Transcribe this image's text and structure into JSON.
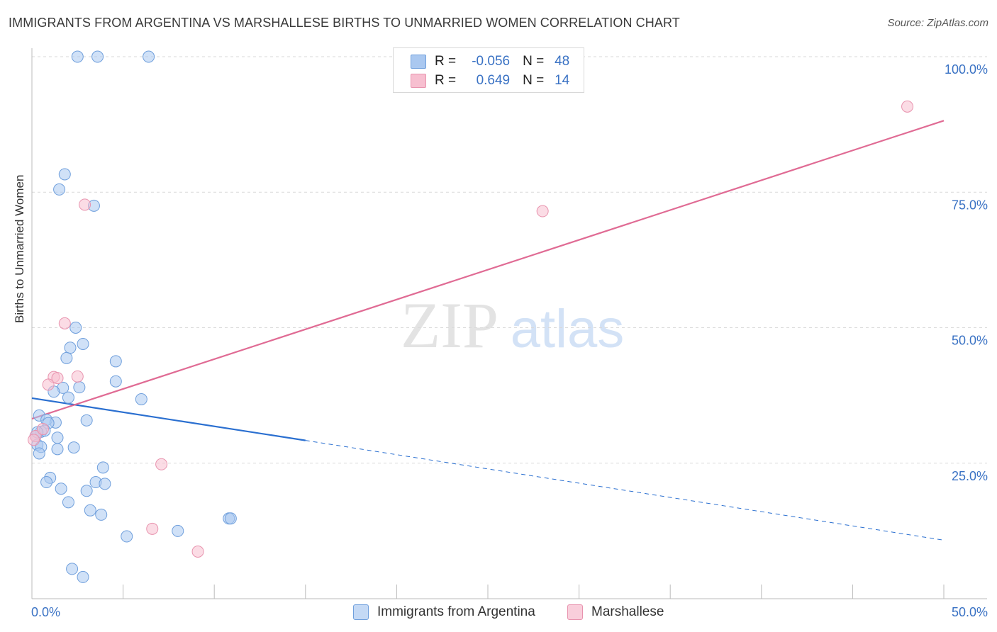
{
  "header": {
    "title": "IMMIGRANTS FROM ARGENTINA VS MARSHALLESE BIRTHS TO UNMARRIED WOMEN CORRELATION CHART",
    "source": "Source: ZipAtlas.com"
  },
  "watermark": {
    "zip": "ZIP",
    "atlas": "atlas"
  },
  "legend": {
    "rows": [
      {
        "r_label": "R =",
        "r_value": "-0.056",
        "n_label": "N =",
        "n_value": "48"
      },
      {
        "r_label": "R =",
        "r_value": "0.649",
        "n_label": "N =",
        "n_value": "14"
      }
    ]
  },
  "bottom_legend": {
    "series1": "Immigrants from Argentina",
    "series2": "Marshallese"
  },
  "colors": {
    "blue_fill": "#aac8f0",
    "blue_stroke": "#6f9fdc",
    "blue_line": "#2a6fd0",
    "pink_fill": "#f7bfd0",
    "pink_stroke": "#e893ae",
    "pink_line": "#e06b94",
    "axis_text": "#3a72c4",
    "grid": "#d9d9d9"
  },
  "chart_data": {
    "type": "scatter",
    "title": "IMMIGRANTS FROM ARGENTINA VS MARSHALLESE BIRTHS TO UNMARRIED WOMEN CORRELATION CHART",
    "xlabel": "",
    "ylabel": "Births to Unmarried Women",
    "xlim": [
      0,
      50
    ],
    "ylim": [
      0,
      100
    ],
    "x_tick_labels": [
      "0.0%",
      "50.0%"
    ],
    "y_ticks": [
      25,
      50,
      75,
      100
    ],
    "y_tick_labels": [
      "25.0%",
      "50.0%",
      "75.0%",
      "100.0%"
    ],
    "grid": true,
    "series": [
      {
        "name": "Immigrants from Argentina",
        "r": -0.056,
        "n": 48,
        "points": [
          [
            2.5,
            100
          ],
          [
            3.6,
            100
          ],
          [
            6.4,
            100
          ],
          [
            1.8,
            78.3
          ],
          [
            1.5,
            75.5
          ],
          [
            3.4,
            72.5
          ],
          [
            2.4,
            50.0
          ],
          [
            2.8,
            47.0
          ],
          [
            2.1,
            46.3
          ],
          [
            1.9,
            44.4
          ],
          [
            4.6,
            43.8
          ],
          [
            4.6,
            40.1
          ],
          [
            2.6,
            39.0
          ],
          [
            1.7,
            38.9
          ],
          [
            1.2,
            38.2
          ],
          [
            2.0,
            37.1
          ],
          [
            6.0,
            36.8
          ],
          [
            0.4,
            33.8
          ],
          [
            0.8,
            33.0
          ],
          [
            1.3,
            32.5
          ],
          [
            3.0,
            32.9
          ],
          [
            0.9,
            32.4
          ],
          [
            0.5,
            30.8
          ],
          [
            0.7,
            31.0
          ],
          [
            1.4,
            29.7
          ],
          [
            0.2,
            30.0
          ],
          [
            0.3,
            28.4
          ],
          [
            0.5,
            28.0
          ],
          [
            1.4,
            27.6
          ],
          [
            2.3,
            27.9
          ],
          [
            0.4,
            26.8
          ],
          [
            3.9,
            24.2
          ],
          [
            1.0,
            22.3
          ],
          [
            0.8,
            21.5
          ],
          [
            3.5,
            21.5
          ],
          [
            4.0,
            21.2
          ],
          [
            1.6,
            20.3
          ],
          [
            3.0,
            19.9
          ],
          [
            2.0,
            17.8
          ],
          [
            3.2,
            16.3
          ],
          [
            3.8,
            15.5
          ],
          [
            10.8,
            14.8
          ],
          [
            10.9,
            14.8
          ],
          [
            8.0,
            12.5
          ],
          [
            5.2,
            11.5
          ],
          [
            2.2,
            5.5
          ],
          [
            2.8,
            4.0
          ],
          [
            0.3,
            30.7
          ]
        ]
      },
      {
        "name": "Marshallese",
        "r": 0.649,
        "n": 14,
        "points": [
          [
            48.0,
            90.8
          ],
          [
            28.0,
            71.5
          ],
          [
            2.9,
            72.7
          ],
          [
            1.8,
            50.8
          ],
          [
            1.2,
            40.9
          ],
          [
            1.4,
            40.7
          ],
          [
            2.5,
            41.0
          ],
          [
            0.9,
            39.5
          ],
          [
            0.2,
            30.0
          ],
          [
            0.1,
            29.3
          ],
          [
            7.1,
            24.8
          ],
          [
            6.6,
            12.9
          ],
          [
            9.1,
            8.7
          ],
          [
            0.6,
            31.3
          ]
        ]
      }
    ],
    "trendlines": [
      {
        "series": "Immigrants from Argentina",
        "x": [
          0,
          15
        ],
        "y": [
          37.0,
          29.2
        ],
        "dashed_extension_to": [
          50,
          10.8
        ]
      },
      {
        "series": "Marshallese",
        "x": [
          0,
          50
        ],
        "y": [
          33.2,
          88.2
        ]
      }
    ]
  }
}
